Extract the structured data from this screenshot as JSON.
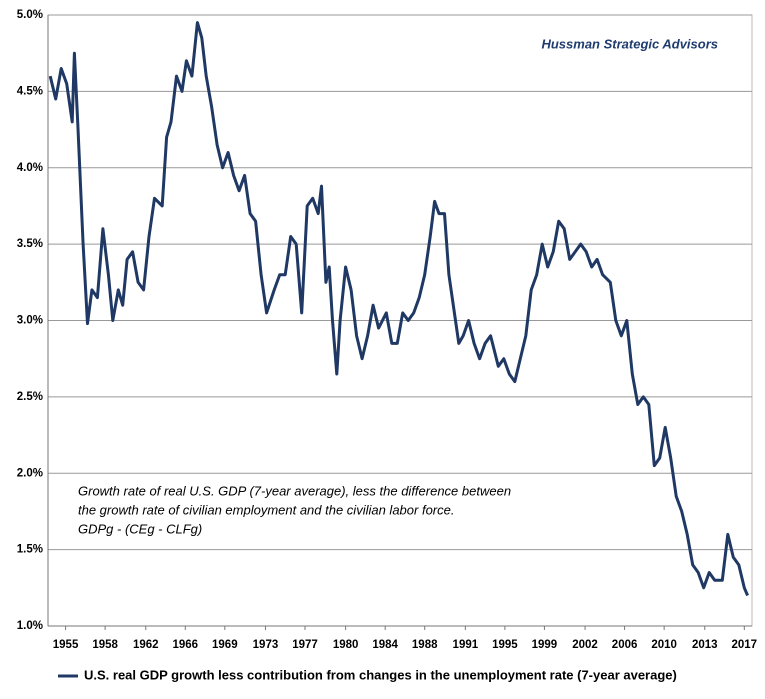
{
  "chart_data": {
    "type": "line",
    "brand": "Hussman Strategic Advisors",
    "annotation": [
      "Growth rate of real U.S. GDP (7-year average), less the difference between",
      "the growth rate of civilian employment and the civilian labor force.",
      "GDPg - (CEg - CLFg)"
    ],
    "x": [
      1953.6,
      1954.1,
      1954.6,
      1955.1,
      1955.6,
      1955.8,
      1956.1,
      1956.6,
      1957,
      1957.4,
      1957.9,
      1958.4,
      1958.9,
      1959.3,
      1959.8,
      1960.2,
      1960.6,
      1961.1,
      1961.6,
      1962.1,
      1962.6,
      1963.1,
      1963.8,
      1964.2,
      1964.6,
      1965.1,
      1965.6,
      1966,
      1966.5,
      1967,
      1967.4,
      1967.8,
      1968.3,
      1968.8,
      1969.3,
      1969.8,
      1970.3,
      1970.8,
      1971.3,
      1971.8,
      1972.3,
      1972.8,
      1973.3,
      1974,
      1974.5,
      1975,
      1975.5,
      1976,
      1976.5,
      1977,
      1977.5,
      1978,
      1978.3,
      1978.7,
      1979,
      1979.3,
      1979.7,
      1980,
      1980.5,
      1981,
      1981.5,
      1982,
      1982.5,
      1983,
      1983.5,
      1984.2,
      1984.7,
      1985.2,
      1985.7,
      1986.2,
      1986.7,
      1987.2,
      1987.7,
      1988.2,
      1988.6,
      1989,
      1989.5,
      1989.9,
      1990.4,
      1990.8,
      1991.2,
      1991.7,
      1992.2,
      1992.7,
      1993.2,
      1993.7,
      1994.4,
      1994.9,
      1995.4,
      1995.9,
      1996.4,
      1996.9,
      1997.4,
      1997.9,
      1998.4,
      1998.9,
      1999.4,
      1999.9,
      2000.4,
      2000.9,
      2001.4,
      2001.9,
      2002.4,
      2002.9,
      2003.4,
      2003.9,
      2004.6,
      2005.1,
      2005.6,
      2006.1,
      2006.6,
      2007.1,
      2007.6,
      2008.1,
      2008.6,
      2009.1,
      2009.6,
      2010.1,
      2010.6,
      2011.1,
      2011.6,
      2012.1,
      2012.6,
      2013.1,
      2013.6,
      2014.1,
      2014.8,
      2015.3,
      2015.8,
      2016.3,
      2016.8,
      2017.1
    ],
    "series": [
      {
        "name": "U.S. real GDP growth less contribution from changes in the unemployment rate (7-year average)",
        "color": "#1f3864",
        "values": [
          4.6,
          4.45,
          4.65,
          4.55,
          4.3,
          4.75,
          4.3,
          3.5,
          2.98,
          3.2,
          3.15,
          3.6,
          3.3,
          3.0,
          3.2,
          3.1,
          3.4,
          3.45,
          3.25,
          3.2,
          3.55,
          3.8,
          3.75,
          4.2,
          4.3,
          4.6,
          4.5,
          4.7,
          4.6,
          4.95,
          4.85,
          4.6,
          4.4,
          4.15,
          4.0,
          4.1,
          3.95,
          3.85,
          3.95,
          3.7,
          3.65,
          3.3,
          3.05,
          3.2,
          3.3,
          3.3,
          3.55,
          3.5,
          3.05,
          3.75,
          3.8,
          3.7,
          3.88,
          3.25,
          3.35,
          3.0,
          2.65,
          3.0,
          3.35,
          3.2,
          2.9,
          2.75,
          2.9,
          3.1,
          2.95,
          3.05,
          2.85,
          2.85,
          3.05,
          3.0,
          3.05,
          3.15,
          3.3,
          3.55,
          3.78,
          3.7,
          3.7,
          3.3,
          3.05,
          2.85,
          2.9,
          3.0,
          2.85,
          2.75,
          2.85,
          2.9,
          2.7,
          2.75,
          2.65,
          2.6,
          2.75,
          2.9,
          3.2,
          3.3,
          3.5,
          3.35,
          3.45,
          3.65,
          3.6,
          3.4,
          3.45,
          3.5,
          3.45,
          3.35,
          3.4,
          3.3,
          3.25,
          3.0,
          2.9,
          3.0,
          2.65,
          2.45,
          2.5,
          2.45,
          2.05,
          2.1,
          2.3,
          2.1,
          1.85,
          1.75,
          1.6,
          1.4,
          1.35,
          1.25,
          1.35,
          1.3,
          1.3,
          1.6,
          1.45,
          1.4,
          1.25,
          1.2
        ]
      }
    ],
    "xlim": [
      1953.4,
      2017.5
    ],
    "xticks": [
      {
        "value": 1955.0,
        "label": "1955"
      },
      {
        "value": 1958.6,
        "label": "1958"
      },
      {
        "value": 1962.3,
        "label": "1962"
      },
      {
        "value": 1965.9,
        "label": "1966"
      },
      {
        "value": 1969.5,
        "label": "1969"
      },
      {
        "value": 1973.2,
        "label": "1973"
      },
      {
        "value": 1976.8,
        "label": "1977"
      },
      {
        "value": 1980.5,
        "label": "1980"
      },
      {
        "value": 1984.1,
        "label": "1984"
      },
      {
        "value": 1987.7,
        "label": "1988"
      },
      {
        "value": 1991.4,
        "label": "1991"
      },
      {
        "value": 1995.0,
        "label": "1995"
      },
      {
        "value": 1998.6,
        "label": "1999"
      },
      {
        "value": 2002.3,
        "label": "2002"
      },
      {
        "value": 2005.9,
        "label": "2006"
      },
      {
        "value": 2009.5,
        "label": "2010"
      },
      {
        "value": 2013.2,
        "label": "2013"
      },
      {
        "value": 2016.8,
        "label": "2017"
      }
    ],
    "ylim": [
      1.0,
      5.0
    ],
    "yticks": [
      {
        "value": 1.0,
        "label": "1.0%"
      },
      {
        "value": 1.5,
        "label": "1.5%"
      },
      {
        "value": 2.0,
        "label": "2.0%"
      },
      {
        "value": 2.5,
        "label": "2.5%"
      },
      {
        "value": 3.0,
        "label": "3.0%"
      },
      {
        "value": 3.5,
        "label": "3.5%"
      },
      {
        "value": 4.0,
        "label": "4.0%"
      },
      {
        "value": 4.5,
        "label": "4.5%"
      },
      {
        "value": 5.0,
        "label": "5.0%"
      }
    ],
    "grid": true
  }
}
